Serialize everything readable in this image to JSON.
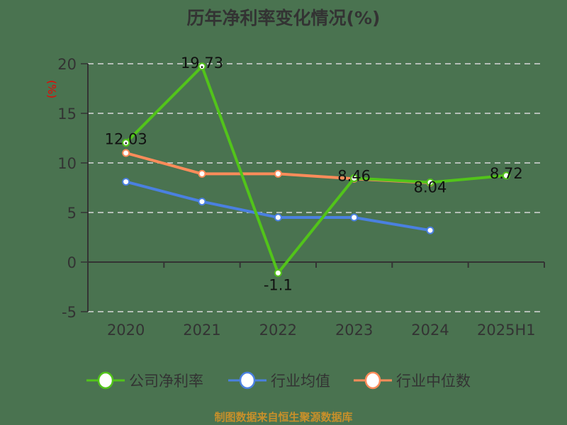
{
  "title": "历年净利率变化情况(%)",
  "footer": "制图数据来自恒生聚源数据库",
  "y_unit_label": "(%)",
  "legend": [
    {
      "label": "公司净利率",
      "color": "#52c41a"
    },
    {
      "label": "行业均值",
      "color": "#4a80e0"
    },
    {
      "label": "行业中位数",
      "color": "#ff8c5a"
    }
  ],
  "chart_data": {
    "type": "line",
    "title": "历年净利率变化情况(%)",
    "xlabel": "",
    "ylabel": "(%)",
    "categories": [
      "2020",
      "2021",
      "2022",
      "2023",
      "2024",
      "2025H1"
    ],
    "ylim": [
      -5,
      20
    ],
    "yticks": [
      -5,
      0,
      5,
      10,
      15,
      20
    ],
    "grid": true,
    "legend_position": "bottom",
    "series": [
      {
        "name": "公司净利率",
        "color": "#52c41a",
        "values": [
          12.03,
          19.73,
          -1.1,
          8.46,
          8.04,
          8.72
        ],
        "labels": [
          "12.03",
          "19.73",
          "-1.1",
          "8.46",
          "8.04",
          "8.72"
        ]
      },
      {
        "name": "行业均值",
        "color": "#4a80e0",
        "values": [
          8.1,
          6.1,
          4.5,
          4.5,
          3.2,
          null
        ]
      },
      {
        "name": "行业中位数",
        "color": "#ff8c5a",
        "values": [
          11.0,
          8.9,
          8.9,
          8.4,
          8.0,
          null
        ]
      }
    ]
  }
}
